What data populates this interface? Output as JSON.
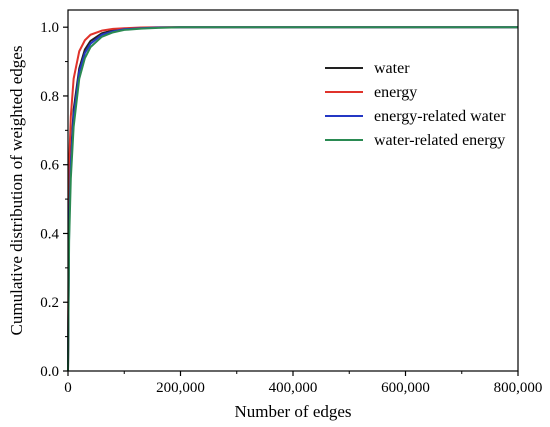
{
  "chart_data": {
    "type": "line",
    "xlabel": "Number of edges",
    "ylabel": "Cumulative distribution of weighted edges",
    "xlim": [
      0,
      800000
    ],
    "ylim": [
      0,
      1.05
    ],
    "x_ticks": [
      {
        "value": 0,
        "label": "0"
      },
      {
        "value": 200000,
        "label": "200,000"
      },
      {
        "value": 400000,
        "label": "400,000"
      },
      {
        "value": 600000,
        "label": "600,000"
      },
      {
        "value": 800000,
        "label": "800,000"
      }
    ],
    "y_ticks": [
      {
        "value": 0.0,
        "label": "0.0"
      },
      {
        "value": 0.2,
        "label": "0.2"
      },
      {
        "value": 0.4,
        "label": "0.4"
      },
      {
        "value": 0.6,
        "label": "0.6"
      },
      {
        "value": 0.8,
        "label": "0.8"
      },
      {
        "value": 1.0,
        "label": "1.0"
      }
    ],
    "grid": false,
    "legend_position": "top-right",
    "series": [
      {
        "name": "water",
        "color": "#222222",
        "x": [
          0,
          2000,
          5000,
          10000,
          20000,
          30000,
          40000,
          60000,
          80000,
          100000,
          130000,
          160000,
          200000,
          300000,
          400000,
          600000,
          800000
        ],
        "y": [
          0.0,
          0.45,
          0.62,
          0.76,
          0.88,
          0.935,
          0.96,
          0.982,
          0.991,
          0.995,
          0.998,
          0.999,
          1.0,
          1.0,
          1.0,
          1.0,
          1.0
        ]
      },
      {
        "name": "energy",
        "color": "#e0332b",
        "x": [
          0,
          2000,
          5000,
          10000,
          20000,
          30000,
          40000,
          60000,
          80000,
          100000,
          130000,
          160000,
          200000,
          300000,
          400000,
          600000,
          800000
        ],
        "y": [
          0.0,
          0.6,
          0.74,
          0.85,
          0.93,
          0.962,
          0.978,
          0.99,
          0.995,
          0.997,
          0.999,
          1.0,
          1.0,
          1.0,
          1.0,
          1.0,
          1.0
        ]
      },
      {
        "name": "energy-related water",
        "color": "#2437c4",
        "x": [
          0,
          2000,
          5000,
          10000,
          20000,
          30000,
          40000,
          60000,
          80000,
          100000,
          130000,
          160000,
          200000,
          300000,
          400000,
          600000,
          800000
        ],
        "y": [
          0.0,
          0.42,
          0.6,
          0.74,
          0.87,
          0.925,
          0.952,
          0.978,
          0.988,
          0.994,
          0.997,
          0.999,
          1.0,
          1.0,
          1.0,
          1.0,
          1.0
        ]
      },
      {
        "name": "water-related energy",
        "color": "#2a8a52",
        "x": [
          0,
          2000,
          5000,
          10000,
          20000,
          30000,
          40000,
          60000,
          80000,
          100000,
          130000,
          160000,
          200000,
          300000,
          400000,
          600000,
          800000
        ],
        "y": [
          0.0,
          0.38,
          0.56,
          0.71,
          0.85,
          0.91,
          0.942,
          0.972,
          0.985,
          0.992,
          0.996,
          0.998,
          1.0,
          1.0,
          1.0,
          1.0,
          1.0
        ]
      }
    ]
  }
}
